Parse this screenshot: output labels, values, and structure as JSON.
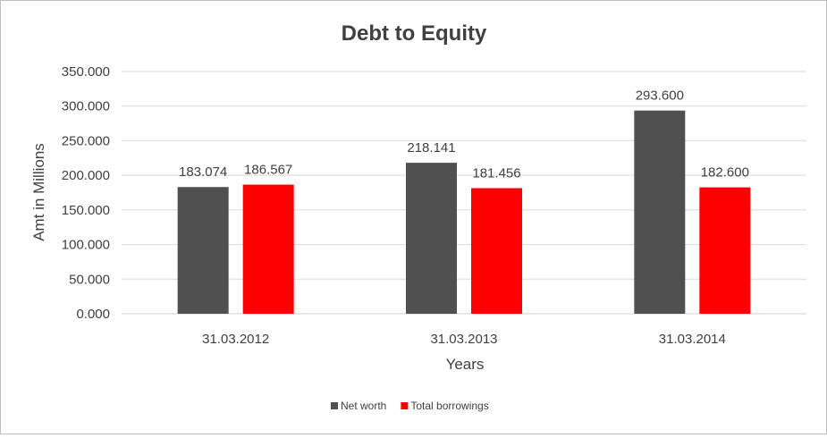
{
  "chart_data": {
    "type": "bar",
    "title": "Debt to Equity",
    "xlabel": "Years",
    "ylabel": "Amt in Millions",
    "categories": [
      "31.03.2012",
      "31.03.2013",
      "31.03.2014"
    ],
    "series": [
      {
        "name": "Net worth",
        "values": [
          183.074,
          218.141,
          293.6
        ],
        "labels": [
          "183.074",
          "218.141",
          "293.600"
        ],
        "color": "#505050"
      },
      {
        "name": "Total borrowings",
        "values": [
          186.567,
          181.456,
          182.6
        ],
        "labels": [
          "186.567",
          "181.456",
          "182.600"
        ],
        "color": "#ff0000"
      }
    ],
    "ylim": [
      0,
      350
    ],
    "yticks": [
      0,
      50,
      100,
      150,
      200,
      250,
      300,
      350
    ],
    "ytick_labels": [
      "0.000",
      "50.000",
      "100.000",
      "150.000",
      "200.000",
      "250.000",
      "300.000",
      "350.000"
    ],
    "grid": true,
    "gridline_color": "#d9d9d9",
    "legend_position": "bottom"
  }
}
